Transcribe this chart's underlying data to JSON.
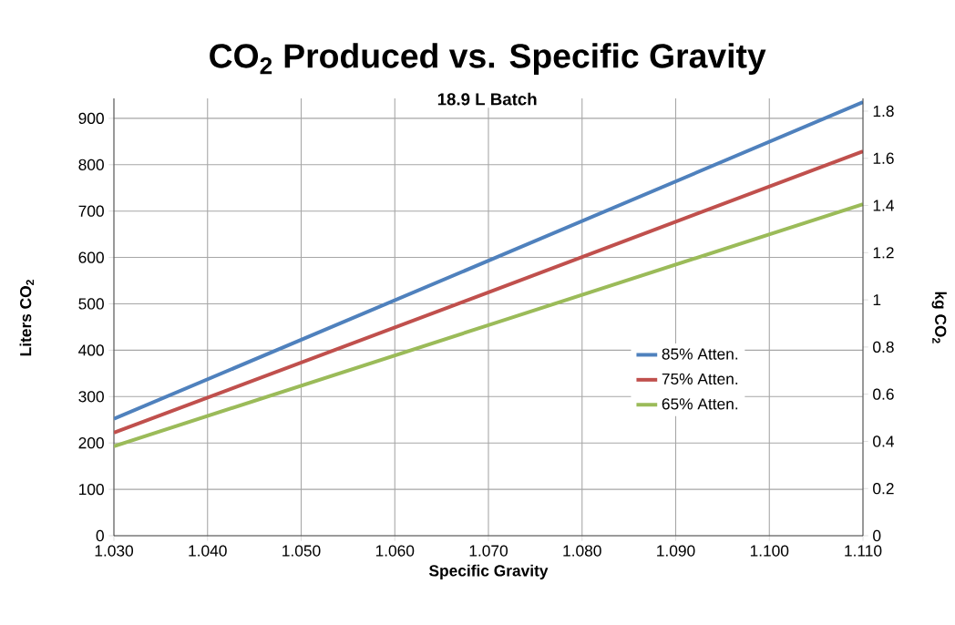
{
  "chart_data": {
    "type": "line",
    "title": "CO$_{2}$ Produced vs. Specific Gravity",
    "subtitle": "18.9 L Batch",
    "xlabel": "Specific Gravity",
    "ylabel": "Liters CO$_{2}$",
    "y2label": "kg CO$_{2}$",
    "x": [
      1.03,
      1.07,
      1.11
    ],
    "series": [
      {
        "name": "85% Atten.",
        "color": "#4f81bd",
        "values": [
          252,
          593,
          935
        ]
      },
      {
        "name": "75% Atten.",
        "color": "#c0504d",
        "values": [
          222,
          525,
          829
        ]
      },
      {
        "name": "65% Atten.",
        "color": "#9bbb59",
        "values": [
          193,
          454,
          715
        ]
      }
    ],
    "xlim": [
      1.03,
      1.11
    ],
    "xticks": [
      {
        "value": 1.03,
        "label": "1.030"
      },
      {
        "value": 1.04,
        "label": "1.040"
      },
      {
        "value": 1.05,
        "label": "1.050"
      },
      {
        "value": 1.06,
        "label": "1.060"
      },
      {
        "value": 1.07,
        "label": "1.070"
      },
      {
        "value": 1.08,
        "label": "1.080"
      },
      {
        "value": 1.09,
        "label": "1.090"
      },
      {
        "value": 1.1,
        "label": "1.100"
      },
      {
        "value": 1.11,
        "label": "1.110"
      }
    ],
    "ylim": [
      0,
      943
    ],
    "yticks": [
      0,
      100,
      200,
      300,
      400,
      500,
      600,
      700,
      800,
      900
    ],
    "y2lim": [
      0,
      1.854
    ],
    "y2ticks": [
      0,
      0.2,
      0.4,
      0.6,
      0.8,
      1,
      1.2,
      1.4,
      1.6,
      1.8
    ],
    "grid": true,
    "legend": "right",
    "marker": "none",
    "line_style": "solid"
  }
}
